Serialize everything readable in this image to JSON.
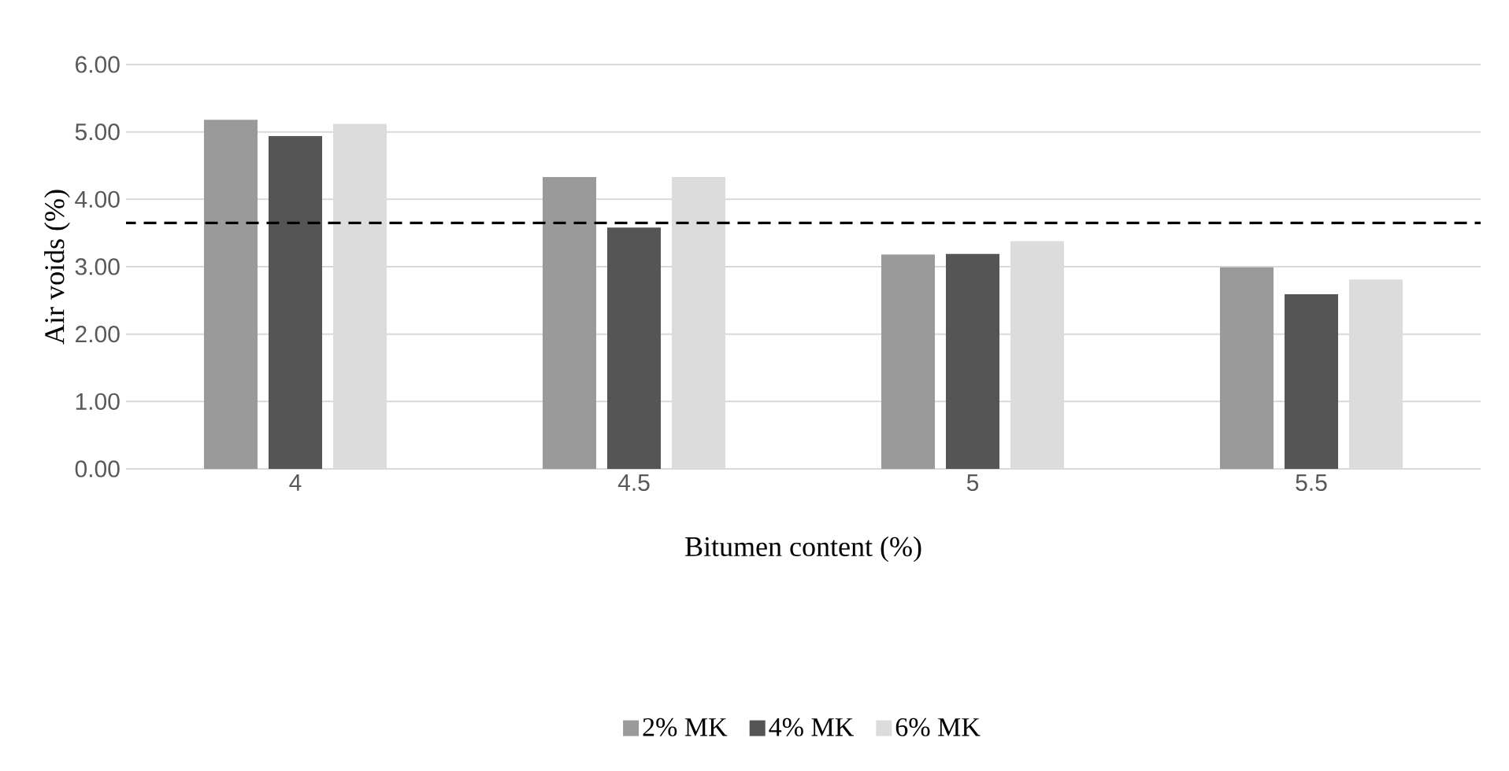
{
  "chart_data": {
    "type": "bar",
    "xlabel": "Bitumen content (%)",
    "ylabel": "Air voids (%)",
    "categories": [
      "4",
      "4.5",
      "5",
      "5.5"
    ],
    "series": [
      {
        "name": "2% MK",
        "color": "#9a9a9a",
        "values": [
          5.18,
          4.33,
          3.18,
          2.99
        ]
      },
      {
        "name": "4% MK",
        "color": "#555555",
        "values": [
          4.94,
          3.58,
          3.19,
          2.59
        ]
      },
      {
        "name": "6% MK",
        "color": "#dcdcdc",
        "values": [
          5.12,
          4.33,
          3.38,
          2.81
        ]
      }
    ],
    "ylim": [
      0,
      6
    ],
    "yticks": [
      {
        "value": 0,
        "label": "0.00"
      },
      {
        "value": 1,
        "label": "1.00"
      },
      {
        "value": 2,
        "label": "2.00"
      },
      {
        "value": 3,
        "label": "3.00"
      },
      {
        "value": 4,
        "label": "4.00"
      },
      {
        "value": 5,
        "label": "5.00"
      },
      {
        "value": 6,
        "label": "6.00"
      }
    ],
    "ref_lines": [
      {
        "axis": "y",
        "value": 3.65,
        "line_style": "dashed",
        "color": "#000000"
      }
    ],
    "grid": "y",
    "legend": "bottom"
  }
}
